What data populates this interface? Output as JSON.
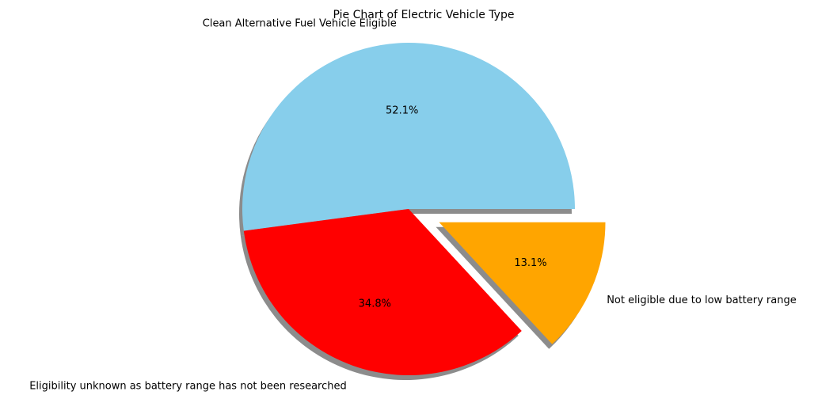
{
  "chart_data": {
    "type": "pie",
    "title": "Pie Chart of Electric Vehicle Type",
    "slices": [
      {
        "label": "Clean Alternative Fuel Vehicle Eligible",
        "value": 52.1,
        "pct_label": "52.1%",
        "color": "#87CEEB",
        "exploded": false
      },
      {
        "label": "Eligibility unknown as battery range has not been researched",
        "value": 34.8,
        "pct_label": "34.8%",
        "color": "#FF0000",
        "exploded": false
      },
      {
        "label": "Not eligible due to low battery range",
        "value": 13.1,
        "pct_label": "13.1%",
        "color": "#FFA500",
        "exploded": true
      }
    ],
    "start_angle_deg": 0,
    "direction": "counterclockwise",
    "shadow": true
  }
}
